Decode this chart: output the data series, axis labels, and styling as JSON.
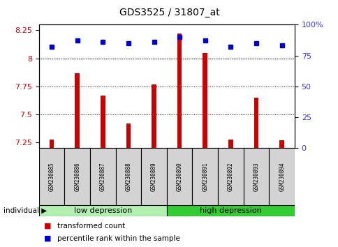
{
  "title": "GDS3525 / 31807_at",
  "samples": [
    "GSM230885",
    "GSM230886",
    "GSM230887",
    "GSM230888",
    "GSM230889",
    "GSM230890",
    "GSM230891",
    "GSM230892",
    "GSM230893",
    "GSM230894"
  ],
  "transformed_count": [
    7.28,
    7.87,
    7.67,
    7.42,
    7.77,
    8.22,
    8.05,
    7.28,
    7.65,
    7.27
  ],
  "percentile_rank": [
    82,
    87,
    86,
    85,
    86,
    90,
    87,
    82,
    85,
    83
  ],
  "groups": [
    {
      "label": "low depression",
      "start": 0,
      "end": 5,
      "color": "#b2f0b2"
    },
    {
      "label": "high depression",
      "start": 5,
      "end": 10,
      "color": "#33cc33"
    }
  ],
  "ylim_left": [
    7.2,
    8.3
  ],
  "ylim_right": [
    0,
    100
  ],
  "yticks_left": [
    7.25,
    7.5,
    7.75,
    8.0,
    8.25
  ],
  "yticks_right": [
    0,
    25,
    50,
    75,
    100
  ],
  "ytick_labels_right": [
    "0",
    "25",
    "50",
    "75",
    "100%"
  ],
  "bar_color": "#cc0000",
  "dot_color": "#0000cc",
  "bar_bottom": 7.2,
  "grid_ticks": [
    7.5,
    7.75,
    8.0
  ],
  "legend_items": [
    {
      "label": "transformed count",
      "color": "#cc0000"
    },
    {
      "label": "percentile rank within the sample",
      "color": "#0000cc"
    }
  ],
  "individual_label": "individual"
}
